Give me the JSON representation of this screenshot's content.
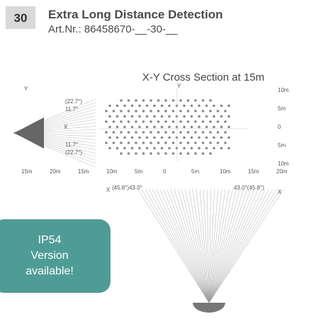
{
  "header": {
    "number": "30",
    "title": "Extra Long Distance Detection",
    "article": "Art.Nr.: 86458670-__-30-__"
  },
  "diagram": {
    "title": "X-Y Cross Section at 15m",
    "side_labels": [
      "Y",
      "Y",
      "(22.7°)",
      "11.7°",
      "X",
      "11.7°",
      "(22.7°)"
    ],
    "scale_right": [
      "10m",
      "5m",
      "0",
      "5m",
      "10m"
    ],
    "scale_bottom": [
      "15m",
      "20m",
      "15m",
      "10m",
      "5m",
      "0",
      "5m",
      "10m",
      "15m",
      "20m"
    ],
    "lower_labels": [
      "X",
      "(45.8°)43.0°",
      "43.0°(45.8°)",
      "X"
    ]
  },
  "badge": {
    "lines": [
      "IP54",
      "Version",
      "available!"
    ]
  }
}
